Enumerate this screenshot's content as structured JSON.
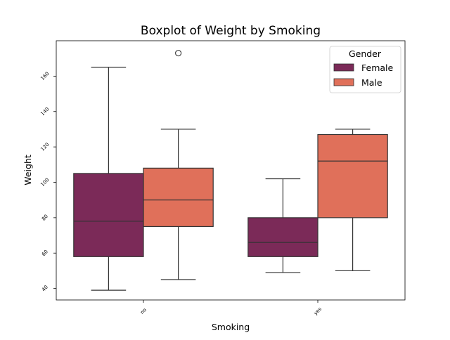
{
  "chart_data": {
    "type": "boxplot",
    "title": "Boxplot of Weight by Smoking",
    "xlabel": "Smoking",
    "ylabel": "Weight",
    "categories": [
      "no",
      "yes"
    ],
    "ylim": [
      33.5,
      180
    ],
    "yticks": [
      40,
      60,
      80,
      100,
      120,
      140,
      160
    ],
    "legend": {
      "title": "Gender",
      "position": "top-right"
    },
    "series": [
      {
        "name": "Female",
        "color": "#7b2a58",
        "boxes": [
          {
            "category": "no",
            "whisker_low": 39,
            "q1": 58,
            "median": 78,
            "q3": 105,
            "whisker_high": 165,
            "outliers": []
          },
          {
            "category": "yes",
            "whisker_low": 49,
            "q1": 58,
            "median": 66,
            "q3": 80,
            "whisker_high": 102,
            "outliers": []
          }
        ]
      },
      {
        "name": "Male",
        "color": "#e0705a",
        "boxes": [
          {
            "category": "no",
            "whisker_low": 45,
            "q1": 75,
            "median": 90,
            "q3": 108,
            "whisker_high": 130,
            "outliers": [
              173
            ]
          },
          {
            "category": "yes",
            "whisker_low": 50,
            "q1": 80,
            "median": 112,
            "q3": 127,
            "whisker_high": 130,
            "outliers": []
          }
        ]
      }
    ]
  }
}
